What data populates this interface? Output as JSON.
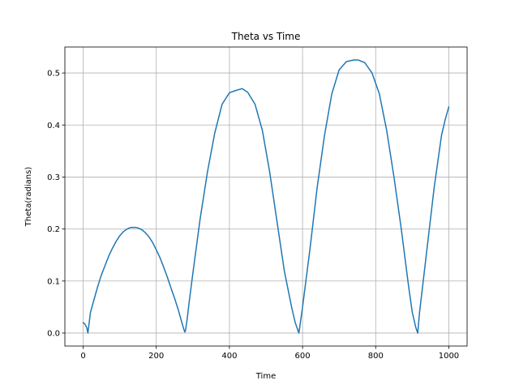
{
  "chart_data": {
    "type": "line",
    "title": "Theta vs Time",
    "xlabel": "Time",
    "ylabel": "Theta(radians)",
    "xlim": [
      -50,
      1050
    ],
    "ylim": [
      -0.025,
      0.55
    ],
    "xticks": [
      0,
      200,
      400,
      600,
      800,
      1000
    ],
    "yticks": [
      0.0,
      0.1,
      0.2,
      0.3,
      0.4,
      0.5
    ],
    "ytick_labels": [
      "0.0",
      "0.1",
      "0.2",
      "0.3",
      "0.4",
      "0.5"
    ],
    "grid": true,
    "color": "#1f77b4",
    "series": [
      {
        "x": [
          0,
          5,
          10,
          13,
          20,
          30,
          40,
          50,
          60,
          70,
          80,
          90,
          100,
          110,
          120,
          130,
          140,
          145,
          150,
          160,
          170,
          180,
          190,
          200,
          210,
          220,
          230,
          240,
          250,
          260,
          270,
          275,
          278,
          280,
          285,
          290,
          300,
          320,
          340,
          360,
          380,
          400,
          420,
          435,
          450,
          470,
          490,
          510,
          530,
          550,
          570,
          580,
          590,
          600,
          620,
          640,
          660,
          680,
          700,
          720,
          740,
          752,
          770,
          790,
          810,
          830,
          850,
          870,
          890,
          900,
          910,
          915,
          920,
          930,
          940,
          950,
          960,
          970,
          980,
          990,
          1000
        ],
        "y": [
          0.02,
          0.017,
          0.01,
          0.0,
          0.04,
          0.065,
          0.09,
          0.112,
          0.13,
          0.148,
          0.163,
          0.176,
          0.187,
          0.195,
          0.2,
          0.203,
          0.203,
          0.203,
          0.202,
          0.199,
          0.193,
          0.185,
          0.174,
          0.16,
          0.145,
          0.127,
          0.108,
          0.087,
          0.067,
          0.045,
          0.02,
          0.008,
          0.002,
          0.005,
          0.03,
          0.06,
          0.115,
          0.22,
          0.31,
          0.385,
          0.44,
          0.462,
          0.467,
          0.47,
          0.463,
          0.44,
          0.39,
          0.31,
          0.215,
          0.12,
          0.05,
          0.02,
          0.0,
          0.05,
          0.16,
          0.28,
          0.38,
          0.46,
          0.506,
          0.522,
          0.525,
          0.525,
          0.52,
          0.5,
          0.46,
          0.39,
          0.3,
          0.2,
          0.09,
          0.04,
          0.01,
          0.0,
          0.04,
          0.1,
          0.16,
          0.22,
          0.28,
          0.33,
          0.38,
          0.41,
          0.435
        ]
      }
    ]
  }
}
